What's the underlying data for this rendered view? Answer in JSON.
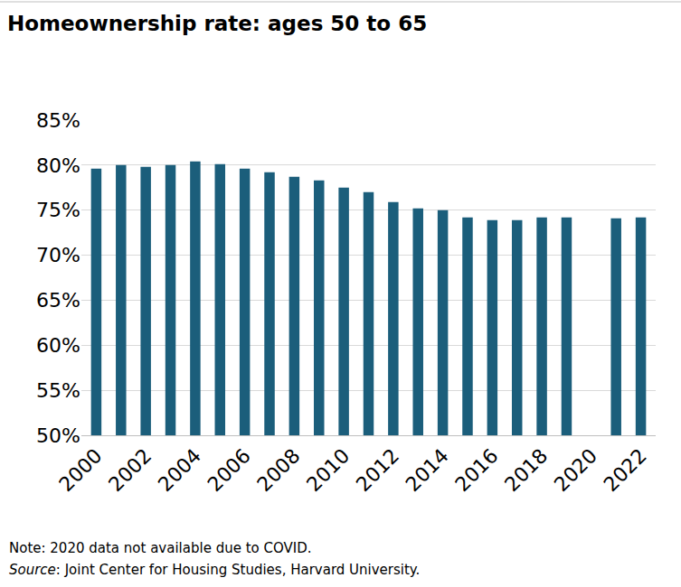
{
  "chart_data": {
    "type": "bar",
    "title": "Homeownership rate: ages 50 to 65",
    "categories": [
      "2000",
      null,
      "2002",
      null,
      "2004",
      null,
      "2006",
      null,
      "2008",
      null,
      "2010",
      null,
      "2012",
      null,
      "2014",
      null,
      "2016",
      null,
      "2018",
      null,
      "2020",
      null,
      "2022"
    ],
    "values": [
      79.6,
      80.0,
      79.8,
      80.0,
      80.4,
      80.1,
      79.6,
      79.2,
      78.7,
      78.3,
      77.5,
      77.0,
      75.9,
      75.2,
      75.0,
      74.2,
      73.9,
      73.9,
      74.2,
      74.2,
      null,
      74.1,
      74.2
    ],
    "color": "#1b5e7b",
    "ylim": [
      50,
      85
    ],
    "yticks": [
      {
        "value": 50,
        "label": "50%"
      },
      {
        "value": 55,
        "label": "55%"
      },
      {
        "value": 60,
        "label": "60%"
      },
      {
        "value": 65,
        "label": "65%"
      },
      {
        "value": 70,
        "label": "70%"
      },
      {
        "value": 75,
        "label": "75%"
      },
      {
        "value": 80,
        "label": "80%"
      },
      {
        "value": 85,
        "label": "85%"
      }
    ],
    "grid": true,
    "annotations": [
      "Note: 2020 data not available due to COVID.",
      "Source: Joint Center for Housing Studies, Harvard University."
    ]
  }
}
